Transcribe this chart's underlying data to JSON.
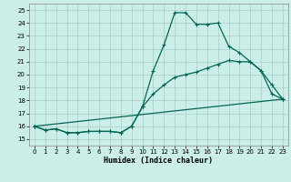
{
  "xlabel": "Humidex (Indice chaleur)",
  "x_ticks": [
    0,
    1,
    2,
    3,
    4,
    5,
    6,
    7,
    8,
    9,
    10,
    11,
    12,
    13,
    14,
    15,
    16,
    17,
    18,
    19,
    20,
    21,
    22,
    23
  ],
  "xlim": [
    -0.5,
    23.5
  ],
  "ylim": [
    14.5,
    25.5
  ],
  "y_ticks": [
    15,
    16,
    17,
    18,
    19,
    20,
    21,
    22,
    23,
    24,
    25
  ],
  "bg_color": "#cceee8",
  "grid_color": "#aaccc8",
  "line_color": "#006655",
  "line1_x": [
    0,
    1,
    2,
    3,
    4,
    5,
    6,
    7,
    8,
    9,
    10,
    11,
    12,
    13,
    14,
    15,
    16,
    17,
    18,
    19,
    20,
    21,
    22,
    23
  ],
  "line1_y": [
    16.0,
    15.7,
    15.8,
    15.5,
    15.5,
    15.6,
    15.6,
    15.6,
    15.5,
    16.0,
    17.5,
    20.3,
    22.3,
    24.8,
    24.8,
    23.9,
    23.9,
    24.0,
    22.2,
    21.7,
    21.0,
    20.3,
    19.2,
    18.1
  ],
  "line2_x": [
    0,
    1,
    2,
    3,
    4,
    5,
    6,
    7,
    8,
    9,
    10,
    11,
    12,
    13,
    14,
    15,
    16,
    17,
    18,
    19,
    20,
    21,
    22,
    23
  ],
  "line2_y": [
    16.0,
    15.7,
    15.8,
    15.5,
    15.5,
    15.6,
    15.6,
    15.6,
    15.5,
    16.0,
    17.5,
    18.5,
    19.2,
    19.8,
    20.0,
    20.2,
    20.5,
    20.8,
    21.1,
    21.0,
    21.0,
    20.3,
    18.5,
    18.1
  ],
  "line3_x": [
    0,
    23
  ],
  "line3_y": [
    16.0,
    18.1
  ]
}
